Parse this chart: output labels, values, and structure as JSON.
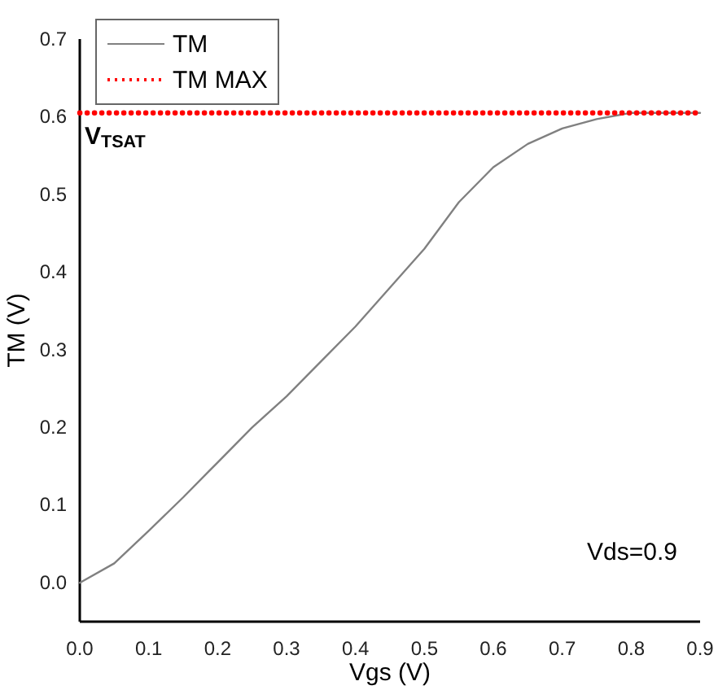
{
  "chart_data": {
    "type": "line",
    "xlabel": "Vgs (V)",
    "ylabel": "TM (V)",
    "xlim": [
      0,
      0.9
    ],
    "ylim": [
      -0.05,
      0.7
    ],
    "xticks": [
      {
        "value": 0,
        "label": "0.0"
      },
      0.1,
      0.2,
      0.3,
      0.4,
      0.5,
      0.6,
      0.7,
      0.8,
      0.9
    ],
    "yticks": [
      {
        "value": 0,
        "label": "0.0"
      },
      0.1,
      0.2,
      0.3,
      0.4,
      0.5,
      0.6,
      0.7
    ],
    "grid": false,
    "legend": "top left",
    "series": [
      {
        "name": "TM",
        "color": "#808080",
        "line_style": "solid",
        "x": [
          0,
          0.05,
          0.1,
          0.15,
          0.2,
          0.25,
          0.3,
          0.35,
          0.4,
          0.45,
          0.5,
          0.55,
          0.6,
          0.65,
          0.7,
          0.75,
          0.8,
          0.85,
          0.9
        ],
        "values": [
          0,
          0.025,
          0.067,
          0.11,
          0.155,
          0.2,
          0.24,
          0.285,
          0.33,
          0.38,
          0.43,
          0.49,
          0.535,
          0.565,
          0.585,
          0.597,
          0.605,
          0.605,
          0.605
        ]
      },
      {
        "name": "TM MAX",
        "color": "#ff0000",
        "line_style": "dotted",
        "x": [
          0,
          0.9
        ],
        "values": [
          0.605,
          0.605
        ]
      }
    ],
    "annotations": [
      {
        "text": "V$_{TSAT}$",
        "x": 0,
        "y": 0.605
      },
      "Vds=0.9"
    ]
  }
}
